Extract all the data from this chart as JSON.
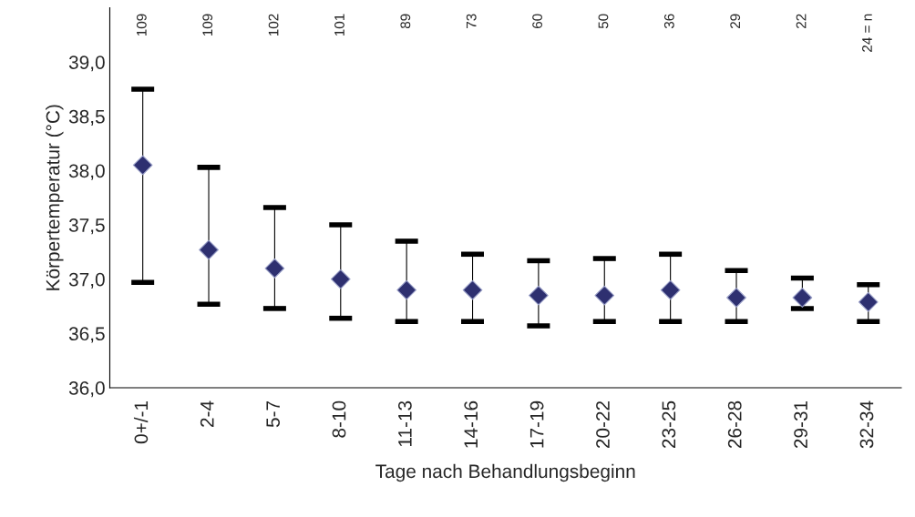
{
  "chart_data": {
    "type": "scatter",
    "xlabel": "Tage nach Behandlungsbeginn",
    "ylabel": "Körpertemperatur (°C)",
    "categories": [
      "0+/-1",
      "2-4",
      "5-7",
      "8-10",
      "11-13",
      "14-16",
      "17-19",
      "20-22",
      "23-25",
      "26-28",
      "29-31",
      "32-34"
    ],
    "values": [
      38.05,
      37.27,
      37.1,
      37.0,
      36.9,
      36.9,
      36.85,
      36.85,
      36.9,
      36.83,
      36.83,
      36.79
    ],
    "errors": [
      [
        36.97,
        38.75
      ],
      [
        36.77,
        38.03
      ],
      [
        36.73,
        37.66
      ],
      [
        36.64,
        37.5
      ],
      [
        36.61,
        37.35
      ],
      [
        36.61,
        37.23
      ],
      [
        36.57,
        37.17
      ],
      [
        36.61,
        37.19
      ],
      [
        36.61,
        37.23
      ],
      [
        36.61,
        37.08
      ],
      [
        36.73,
        37.01
      ],
      [
        36.61,
        36.95
      ]
    ],
    "color": "#2e3070",
    "marker": "diamond",
    "ylim": [
      36.0,
      39.5
    ],
    "yticks": [
      {
        "value": 36.0,
        "label": "36,0"
      },
      {
        "value": 36.5,
        "label": "36,5"
      },
      {
        "value": 37.0,
        "label": "37,0"
      },
      {
        "value": 37.5,
        "label": "37,5"
      },
      {
        "value": 38.0,
        "label": "38,0"
      },
      {
        "value": 38.5,
        "label": "38,5"
      },
      {
        "value": 39.0,
        "label": "39,0"
      }
    ],
    "grid": false,
    "legend": false,
    "annotations": [
      "109",
      "109",
      "102",
      "101",
      "89",
      "73",
      "60",
      "50",
      "36",
      "29",
      "22",
      "24 = n"
    ]
  }
}
